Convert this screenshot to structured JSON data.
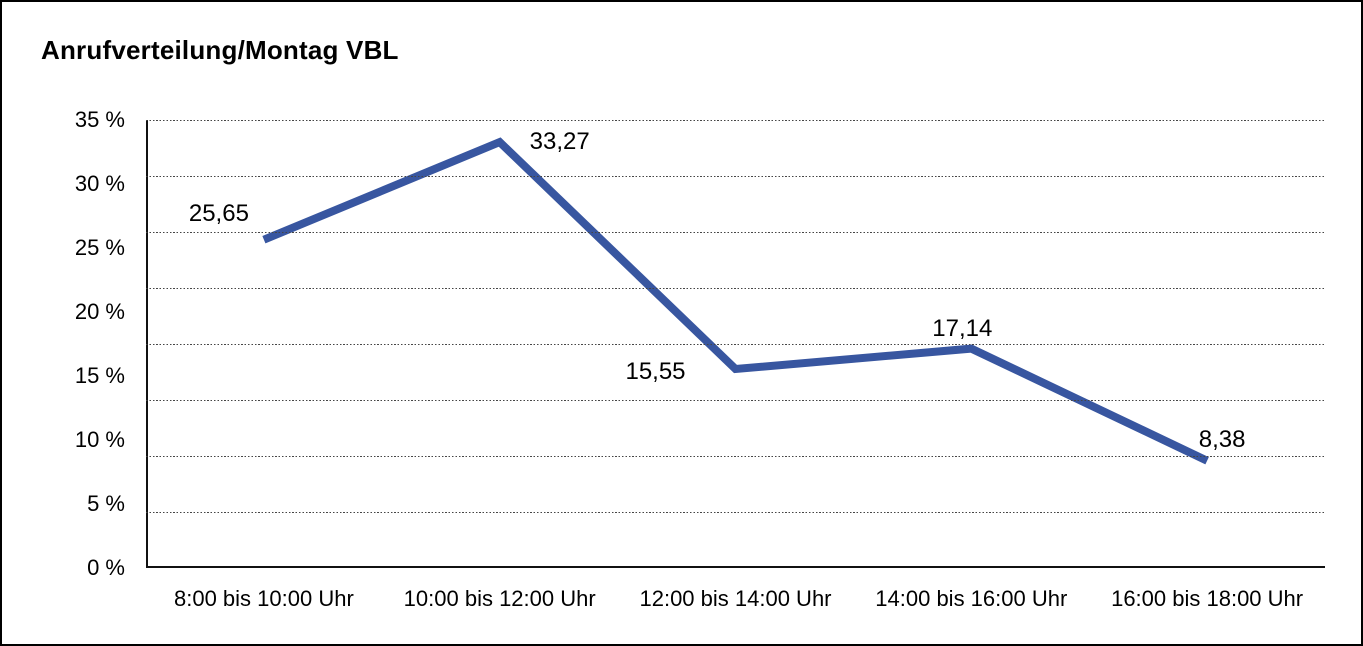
{
  "title": "Anrufverteilung/Montag VBL",
  "colors": {
    "line": "#3856A0",
    "gridline": "#454545",
    "axis": "#111111",
    "text": "#000000",
    "background": "#ffffff",
    "border": "#000000"
  },
  "chart_data": {
    "type": "line",
    "title": "Anrufverteilung/Montag VBL",
    "categories": [
      "8:00 bis 10:00 Uhr",
      "10:00 bis 12:00 Uhr",
      "12:00 bis 14:00 Uhr",
      "14:00 bis 16:00 Uhr",
      "16:00 bis 18:00 Uhr"
    ],
    "values": [
      25.65,
      33.27,
      15.55,
      17.14,
      8.38
    ],
    "value_labels": [
      "25,65",
      "33,27",
      "15,55",
      "17,14",
      "8,38"
    ],
    "y_ticks": [
      {
        "value": 35,
        "label": "35 %"
      },
      {
        "value": 30,
        "label": "30 %"
      },
      {
        "value": 25,
        "label": "25 %"
      },
      {
        "value": 20,
        "label": "20 %"
      },
      {
        "value": 15,
        "label": "15 %"
      },
      {
        "value": 10,
        "label": "10 %"
      },
      {
        "value": 5,
        "label": "5 %"
      },
      {
        "value": 0,
        "label": "0 %"
      }
    ],
    "xlabel": "",
    "ylabel": "",
    "ylim": [
      0,
      35
    ],
    "grid": "horizontal dotted, 8 equal divisions",
    "legend": "none",
    "markers": "none",
    "line_color": "#3856A0",
    "line_width": 8
  }
}
